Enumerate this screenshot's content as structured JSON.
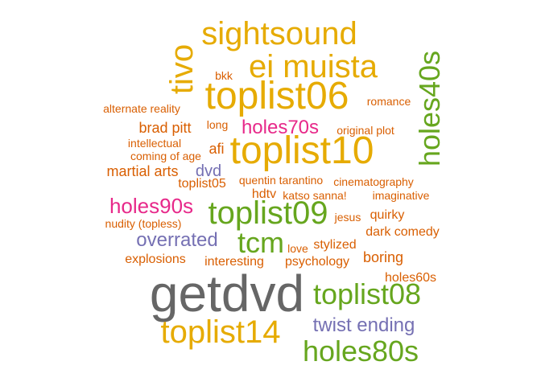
{
  "colors": {
    "gold": "#E6AB02",
    "green": "#66A61E",
    "orange": "#D95F02",
    "magenta": "#E7298A",
    "purple": "#7570B3",
    "gray": "#666666"
  },
  "words": [
    {
      "text": "sightsound",
      "color": "gold",
      "rotated": false
    },
    {
      "text": "ei muista",
      "color": "gold",
      "rotated": false
    },
    {
      "text": "tivo",
      "color": "gold",
      "rotated": true
    },
    {
      "text": "holes40s",
      "color": "green",
      "rotated": true
    },
    {
      "text": "bkk",
      "color": "orange",
      "rotated": false
    },
    {
      "text": "toplist06",
      "color": "gold",
      "rotated": false
    },
    {
      "text": "romance",
      "color": "orange",
      "rotated": false
    },
    {
      "text": "alternate reality",
      "color": "orange",
      "rotated": false
    },
    {
      "text": "long",
      "color": "orange",
      "rotated": false
    },
    {
      "text": "brad pitt",
      "color": "orange",
      "rotated": false
    },
    {
      "text": "holes70s",
      "color": "magenta",
      "rotated": false
    },
    {
      "text": "original plot",
      "color": "orange",
      "rotated": false
    },
    {
      "text": "intellectual",
      "color": "orange",
      "rotated": false
    },
    {
      "text": "coming of age",
      "color": "orange",
      "rotated": false
    },
    {
      "text": "afi",
      "color": "orange",
      "rotated": false
    },
    {
      "text": "toplist10",
      "color": "gold",
      "rotated": false
    },
    {
      "text": "martial arts",
      "color": "orange",
      "rotated": false
    },
    {
      "text": "dvd",
      "color": "purple",
      "rotated": false
    },
    {
      "text": "quentin tarantino",
      "color": "orange",
      "rotated": false
    },
    {
      "text": "cinematography",
      "color": "orange",
      "rotated": false
    },
    {
      "text": "toplist05",
      "color": "orange",
      "rotated": false
    },
    {
      "text": "hdtv",
      "color": "orange",
      "rotated": false
    },
    {
      "text": "katso sanna!",
      "color": "orange",
      "rotated": false
    },
    {
      "text": "imaginative",
      "color": "orange",
      "rotated": false
    },
    {
      "text": "holes90s",
      "color": "magenta",
      "rotated": false
    },
    {
      "text": "toplist09",
      "color": "green",
      "rotated": false
    },
    {
      "text": "jesus",
      "color": "orange",
      "rotated": false
    },
    {
      "text": "quirky",
      "color": "orange",
      "rotated": false
    },
    {
      "text": "nudity (topless)",
      "color": "orange",
      "rotated": false
    },
    {
      "text": "dark comedy",
      "color": "orange",
      "rotated": false
    },
    {
      "text": "overrated",
      "color": "purple",
      "rotated": false
    },
    {
      "text": "tcm",
      "color": "green",
      "rotated": false
    },
    {
      "text": "love",
      "color": "orange",
      "rotated": false
    },
    {
      "text": "stylized",
      "color": "orange",
      "rotated": false
    },
    {
      "text": "explosions",
      "color": "orange",
      "rotated": false
    },
    {
      "text": "interesting",
      "color": "orange",
      "rotated": false
    },
    {
      "text": "psychology",
      "color": "orange",
      "rotated": false
    },
    {
      "text": "boring",
      "color": "orange",
      "rotated": false
    },
    {
      "text": "holes60s",
      "color": "orange",
      "rotated": false
    },
    {
      "text": "getdvd",
      "color": "gray",
      "rotated": false
    },
    {
      "text": "toplist08",
      "color": "green",
      "rotated": false
    },
    {
      "text": "twist ending",
      "color": "purple",
      "rotated": false
    },
    {
      "text": "toplist14",
      "color": "gold",
      "rotated": false
    },
    {
      "text": "holes80s",
      "color": "green",
      "rotated": false
    }
  ]
}
